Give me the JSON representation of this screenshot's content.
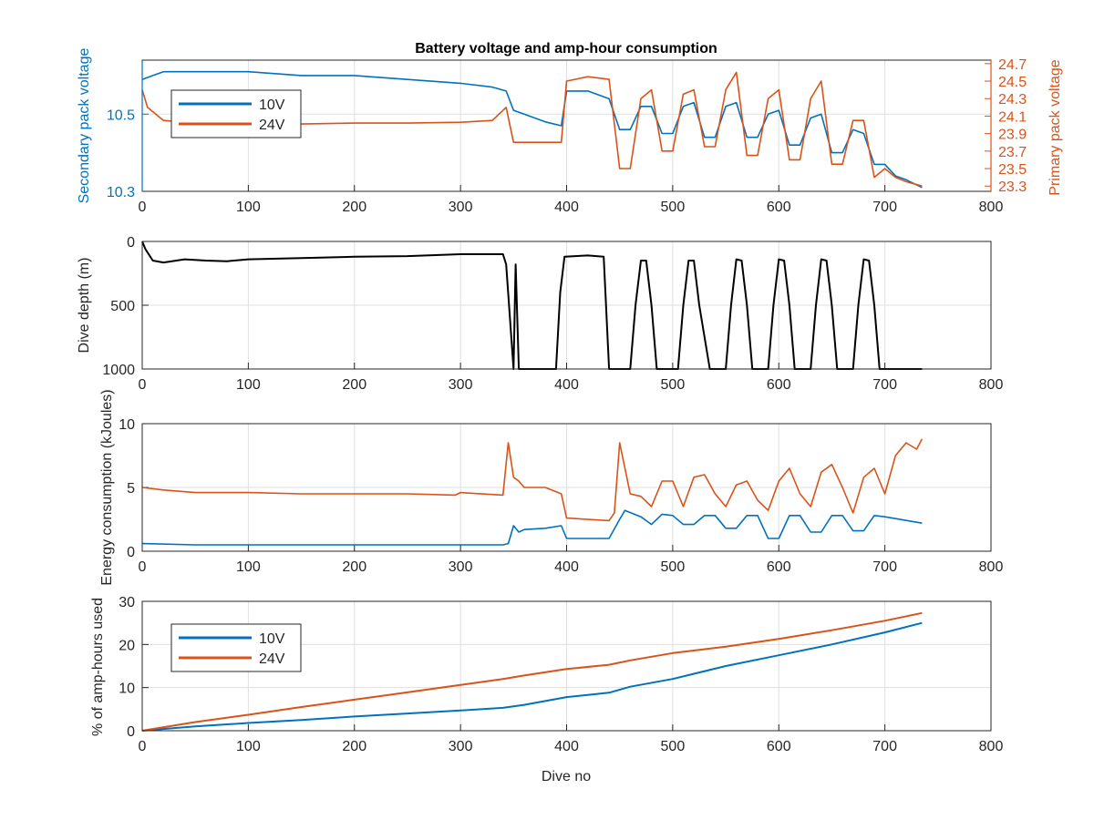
{
  "figure": {
    "title": "Battery voltage and amp-hour consumption",
    "colors": {
      "series_10v": "#0072BD",
      "series_24v": "#D95319",
      "depth": "#000000",
      "axis": "#262626",
      "grid": "#dfdfdf"
    }
  },
  "chart_data": [
    {
      "id": "voltage",
      "type": "line",
      "title": "Battery voltage and amp-hour consumption",
      "xlabel": "",
      "ylabel": "Secondary pack voltage",
      "ylabel_right": "Primary pack voltage",
      "xlim": [
        0,
        800
      ],
      "ylim": [
        10.3,
        10.64
      ],
      "ylim_right": [
        23.24,
        24.74
      ],
      "xticks": [
        "0",
        "100",
        "200",
        "300",
        "400",
        "500",
        "600",
        "700",
        "800"
      ],
      "yticks": [
        "10.3",
        "10.5"
      ],
      "yticks_right": [
        "23.3",
        "23.5",
        "23.7",
        "23.9",
        "24.1",
        "24.3",
        "24.5",
        "24.7"
      ],
      "grid": true,
      "legend": {
        "position": "top-left",
        "entries": [
          "10V",
          "24V"
        ]
      },
      "series": [
        {
          "name": "10V",
          "axis": "left",
          "x": [
            0,
            10,
            20,
            50,
            100,
            150,
            200,
            250,
            300,
            330,
            343,
            350,
            360,
            380,
            395,
            400,
            420,
            440,
            450,
            460,
            470,
            480,
            490,
            500,
            510,
            520,
            530,
            540,
            550,
            560,
            570,
            580,
            590,
            600,
            610,
            620,
            630,
            640,
            650,
            660,
            670,
            680,
            690,
            700,
            710,
            720,
            735
          ],
          "y": [
            10.59,
            10.6,
            10.61,
            10.61,
            10.61,
            10.6,
            10.6,
            10.59,
            10.58,
            10.57,
            10.56,
            10.51,
            10.5,
            10.48,
            10.47,
            10.56,
            10.56,
            10.54,
            10.46,
            10.46,
            10.52,
            10.52,
            10.45,
            10.45,
            10.52,
            10.53,
            10.44,
            10.44,
            10.52,
            10.53,
            10.44,
            10.44,
            10.5,
            10.51,
            10.42,
            10.42,
            10.49,
            10.5,
            10.4,
            10.4,
            10.46,
            10.45,
            10.37,
            10.37,
            10.34,
            10.33,
            10.31
          ]
        },
        {
          "name": "24V",
          "axis": "right",
          "x": [
            0,
            5,
            20,
            50,
            100,
            150,
            200,
            250,
            300,
            330,
            343,
            350,
            360,
            380,
            395,
            400,
            420,
            440,
            450,
            460,
            470,
            480,
            490,
            500,
            510,
            520,
            530,
            540,
            550,
            560,
            570,
            580,
            590,
            600,
            610,
            620,
            630,
            640,
            650,
            660,
            670,
            680,
            690,
            700,
            710,
            720,
            735
          ],
          "y": [
            24.4,
            24.2,
            24.05,
            24.02,
            24.01,
            24.01,
            24.02,
            24.02,
            24.03,
            24.05,
            24.2,
            23.8,
            23.8,
            23.8,
            23.8,
            24.5,
            24.55,
            24.52,
            23.5,
            23.5,
            24.3,
            24.4,
            23.7,
            23.7,
            24.35,
            24.4,
            23.75,
            23.75,
            24.4,
            24.6,
            23.65,
            23.65,
            24.3,
            24.4,
            23.6,
            23.6,
            24.3,
            24.5,
            23.55,
            23.55,
            24.05,
            24.05,
            23.4,
            23.5,
            23.4,
            23.35,
            23.3
          ]
        }
      ]
    },
    {
      "id": "depth",
      "type": "line",
      "xlabel": "",
      "ylabel": "Dive depth (m)",
      "xlim": [
        0,
        800
      ],
      "ylim": [
        0,
        1000
      ],
      "y_reversed": true,
      "xticks": [
        "0",
        "100",
        "200",
        "300",
        "400",
        "500",
        "600",
        "700",
        "800"
      ],
      "yticks": [
        "0",
        "500",
        "1000"
      ],
      "grid": true,
      "series": [
        {
          "name": "",
          "x": [
            0,
            3,
            10,
            20,
            40,
            60,
            80,
            100,
            150,
            200,
            250,
            300,
            340,
            343,
            350,
            352,
            355,
            358,
            360,
            380,
            390,
            394,
            398,
            420,
            435,
            440,
            445,
            460,
            465,
            470,
            475,
            480,
            485,
            490,
            495,
            505,
            510,
            515,
            520,
            525,
            535,
            550,
            555,
            560,
            565,
            570,
            575,
            590,
            595,
            600,
            605,
            610,
            615,
            630,
            635,
            640,
            645,
            650,
            655,
            670,
            675,
            680,
            685,
            690,
            695,
            700,
            735
          ],
          "y": [
            0,
            60,
            150,
            165,
            140,
            150,
            155,
            140,
            130,
            120,
            115,
            100,
            100,
            180,
            1000,
            180,
            1000,
            1000,
            1000,
            1000,
            1000,
            400,
            120,
            110,
            120,
            1000,
            1000,
            1000,
            500,
            150,
            150,
            500,
            1000,
            1000,
            1000,
            1000,
            500,
            150,
            150,
            500,
            1000,
            1000,
            500,
            140,
            150,
            500,
            1000,
            1000,
            500,
            140,
            150,
            500,
            1000,
            1000,
            500,
            140,
            150,
            500,
            1000,
            1000,
            500,
            140,
            150,
            500,
            1000,
            1000,
            1000
          ]
        }
      ]
    },
    {
      "id": "energy",
      "type": "line",
      "xlabel": "",
      "ylabel": "Energy consumption (kJoules)",
      "xlim": [
        0,
        800
      ],
      "ylim": [
        0,
        10
      ],
      "xticks": [
        "0",
        "100",
        "200",
        "300",
        "400",
        "500",
        "600",
        "700",
        "800"
      ],
      "yticks": [
        "0",
        "5",
        "10"
      ],
      "grid": true,
      "series": [
        {
          "name": "10V",
          "x": [
            0,
            50,
            100,
            150,
            200,
            250,
            290,
            300,
            340,
            345,
            350,
            355,
            360,
            380,
            395,
            400,
            440,
            450,
            455,
            470,
            480,
            490,
            500,
            510,
            520,
            530,
            540,
            550,
            560,
            570,
            580,
            590,
            600,
            610,
            620,
            630,
            640,
            650,
            660,
            670,
            680,
            690,
            700,
            735
          ],
          "y": [
            0.6,
            0.5,
            0.5,
            0.5,
            0.5,
            0.5,
            0.5,
            0.5,
            0.5,
            0.6,
            2.0,
            1.5,
            1.7,
            1.8,
            2.0,
            1.0,
            1.0,
            2.5,
            3.2,
            2.7,
            2.1,
            2.9,
            2.8,
            2.1,
            2.1,
            2.8,
            2.8,
            1.8,
            1.8,
            2.8,
            2.8,
            1.0,
            1.0,
            2.8,
            2.8,
            1.5,
            1.5,
            2.8,
            2.8,
            1.6,
            1.6,
            2.8,
            2.7,
            2.2
          ]
        },
        {
          "name": "24V",
          "x": [
            0,
            20,
            50,
            100,
            150,
            200,
            250,
            295,
            300,
            340,
            345,
            350,
            355,
            360,
            380,
            395,
            400,
            440,
            445,
            450,
            460,
            470,
            480,
            490,
            500,
            510,
            520,
            530,
            540,
            550,
            560,
            570,
            580,
            590,
            600,
            610,
            620,
            630,
            640,
            650,
            660,
            670,
            680,
            690,
            700,
            710,
            720,
            730,
            735
          ],
          "y": [
            5.0,
            4.8,
            4.6,
            4.6,
            4.5,
            4.5,
            4.5,
            4.4,
            4.6,
            4.4,
            8.5,
            5.8,
            5.5,
            5.0,
            5.0,
            4.5,
            2.6,
            2.4,
            3.0,
            8.5,
            4.5,
            4.3,
            3.5,
            5.5,
            5.5,
            3.5,
            5.8,
            6.0,
            4.5,
            3.5,
            5.2,
            5.5,
            4.0,
            3.2,
            5.5,
            6.5,
            4.5,
            3.5,
            6.2,
            6.8,
            5.0,
            3.0,
            5.8,
            6.5,
            4.5,
            7.5,
            8.5,
            8.0,
            8.8
          ]
        }
      ]
    },
    {
      "id": "amphours",
      "type": "line",
      "xlabel": "Dive no",
      "ylabel": "% of amp-hours used",
      "xlim": [
        0,
        800
      ],
      "ylim": [
        0,
        30
      ],
      "xticks": [
        "0",
        "100",
        "200",
        "300",
        "400",
        "500",
        "600",
        "700",
        "800"
      ],
      "yticks": [
        "0",
        "10",
        "20",
        "30"
      ],
      "grid": true,
      "legend": {
        "position": "top-left",
        "entries": [
          "10V",
          "24V"
        ]
      },
      "series": [
        {
          "name": "10V",
          "x": [
            0,
            50,
            100,
            150,
            200,
            250,
            300,
            340,
            360,
            400,
            440,
            460,
            500,
            550,
            600,
            650,
            700,
            735
          ],
          "y": [
            0,
            1.0,
            1.8,
            2.5,
            3.3,
            4.0,
            4.7,
            5.3,
            6.0,
            7.8,
            8.8,
            10.2,
            12.0,
            15.0,
            17.5,
            20.0,
            22.8,
            25.0
          ]
        },
        {
          "name": "24V",
          "x": [
            0,
            50,
            100,
            150,
            200,
            250,
            300,
            340,
            360,
            400,
            440,
            460,
            500,
            550,
            600,
            650,
            700,
            735
          ],
          "y": [
            0,
            2.0,
            3.7,
            5.5,
            7.2,
            8.9,
            10.6,
            12.0,
            12.8,
            14.3,
            15.3,
            16.3,
            18.0,
            19.5,
            21.3,
            23.3,
            25.5,
            27.3
          ]
        }
      ]
    }
  ]
}
